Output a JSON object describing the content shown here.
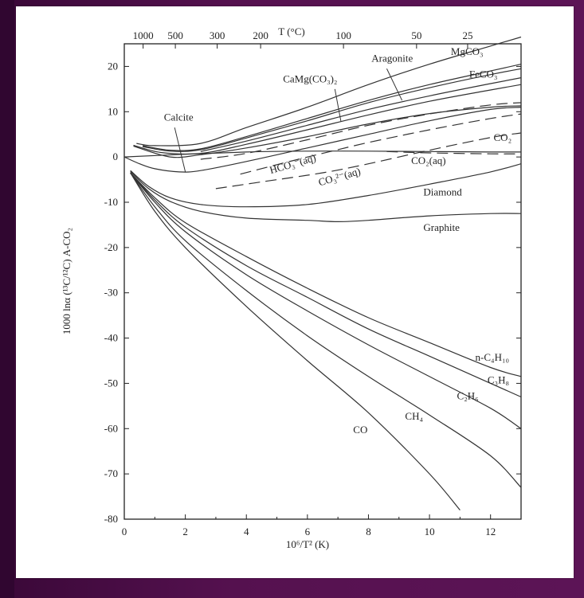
{
  "chart_data": {
    "type": "line",
    "xlabel": "10⁶/T² (K)",
    "ylabel": "1000 lnα (¹³C/¹²C) A-CO₂",
    "top_axis_label": "T (°C)",
    "xlim": [
      0,
      13
    ],
    "ylim": [
      -80,
      25
    ],
    "x_ticks": [
      0,
      2,
      4,
      6,
      8,
      10,
      12
    ],
    "y_ticks": [
      20,
      10,
      0,
      -10,
      -20,
      -30,
      -40,
      -50,
      -60,
      -70,
      -80
    ],
    "top_ticks": [
      {
        "label": "1000",
        "celsius": 1000
      },
      {
        "label": "500",
        "celsius": 500
      },
      {
        "label": "300",
        "celsius": 300
      },
      {
        "label": "200",
        "celsius": 200
      },
      {
        "label": "100",
        "celsius": 100
      },
      {
        "label": "50",
        "celsius": 50
      },
      {
        "label": "25",
        "celsius": 25
      }
    ],
    "series": [
      {
        "name": "MgCO₃",
        "dash": "solid",
        "points": [
          [
            0.4,
            3
          ],
          [
            1,
            2.5
          ],
          [
            2.5,
            3
          ],
          [
            4,
            6.5
          ],
          [
            6,
            11
          ],
          [
            8,
            16
          ],
          [
            10,
            20.5
          ],
          [
            12,
            24.5
          ],
          [
            13,
            26.5
          ]
        ]
      },
      {
        "name": "Aragonite",
        "dash": "solid",
        "points": [
          [
            0.6,
            2.5
          ],
          [
            1.5,
            1.5
          ],
          [
            2.5,
            1.8
          ],
          [
            4,
            4.5
          ],
          [
            6,
            8.5
          ],
          [
            8,
            12.5
          ],
          [
            10,
            16
          ],
          [
            12,
            19
          ],
          [
            13,
            20.5
          ]
        ]
      },
      {
        "name": "FeCO₃",
        "dash": "solid",
        "points": [
          [
            0.6,
            2.3
          ],
          [
            1.5,
            1.3
          ],
          [
            2.5,
            1.6
          ],
          [
            4,
            4.2
          ],
          [
            6,
            8
          ],
          [
            8,
            12
          ],
          [
            10,
            15.3
          ],
          [
            12,
            18.2
          ],
          [
            13,
            19.5
          ]
        ]
      },
      {
        "name": "CaMg(CO₃)₂",
        "dash": "solid",
        "points": [
          [
            2.5,
            1.2
          ],
          [
            4,
            3.5
          ],
          [
            6,
            7
          ],
          [
            8,
            10.5
          ],
          [
            10,
            13.5
          ],
          [
            12,
            16.2
          ],
          [
            13,
            17.5
          ]
        ]
      },
      {
        "name": "",
        "dash": "solid",
        "points": [
          [
            0.3,
            2.6
          ],
          [
            1.2,
            1
          ],
          [
            2.5,
            0.8
          ],
          [
            4,
            2.8
          ],
          [
            6,
            6
          ],
          [
            8,
            9.3
          ],
          [
            10,
            12.3
          ],
          [
            12,
            14.8
          ],
          [
            13,
            16
          ]
        ]
      },
      {
        "name": "",
        "dash": "solid",
        "points": [
          [
            0.3,
            2.4
          ],
          [
            1.5,
            0
          ],
          [
            2.5,
            0.5
          ],
          [
            4,
            2
          ],
          [
            6,
            4.5
          ],
          [
            8,
            7.3
          ],
          [
            10,
            9.6
          ],
          [
            12,
            11
          ],
          [
            13,
            11.3
          ]
        ]
      },
      {
        "name": "",
        "dash": "long",
        "points": [
          [
            2.5,
            -0.5
          ],
          [
            4,
            0.8
          ],
          [
            6,
            3.8
          ],
          [
            8,
            7
          ],
          [
            10,
            9.5
          ],
          [
            12,
            11.5
          ],
          [
            13,
            12
          ]
        ]
      },
      {
        "name": "Calcite",
        "dash": "solid",
        "points": [
          [
            0,
            0
          ],
          [
            0.5,
            -1.5
          ],
          [
            1,
            -2.6
          ],
          [
            1.8,
            -3.3
          ],
          [
            2.5,
            -3
          ],
          [
            4,
            -1
          ],
          [
            6,
            2
          ],
          [
            8,
            5
          ],
          [
            10,
            8
          ],
          [
            12,
            10.5
          ],
          [
            13,
            11
          ]
        ]
      },
      {
        "name": "CO₂",
        "dash": "solid",
        "points": [
          [
            0,
            0
          ],
          [
            2,
            0.6
          ],
          [
            4,
            1.1
          ],
          [
            6,
            1.3
          ],
          [
            8,
            1.3
          ],
          [
            10,
            1.2
          ],
          [
            12,
            1.1
          ],
          [
            13,
            1.1
          ]
        ]
      },
      {
        "name": "HCO₃⁻(aq)",
        "dash": "long",
        "points": [
          [
            3.8,
            -3.8
          ],
          [
            5,
            -1.7
          ],
          [
            6.5,
            0.8
          ],
          [
            8,
            3.2
          ],
          [
            10,
            6
          ],
          [
            12,
            8.5
          ],
          [
            13,
            9.5
          ]
        ]
      },
      {
        "name": "CO₃²⁻(aq)",
        "dash": "long",
        "points": [
          [
            3,
            -7
          ],
          [
            4.5,
            -5.5
          ],
          [
            6.5,
            -3.5
          ],
          [
            8,
            -1.5
          ],
          [
            10,
            1.5
          ],
          [
            12,
            4.3
          ],
          [
            13,
            5.3
          ]
        ]
      },
      {
        "name": "CO₂(aq)",
        "dash": "long",
        "points": [
          [
            8.6,
            1.2
          ],
          [
            10,
            0.9
          ],
          [
            12,
            0.7
          ],
          [
            13,
            0.7
          ]
        ]
      },
      {
        "name": "Diamond",
        "dash": "solid",
        "points": [
          [
            0.2,
            -3
          ],
          [
            0.8,
            -6.5
          ],
          [
            1.5,
            -9
          ],
          [
            2.5,
            -10.5
          ],
          [
            4,
            -11
          ],
          [
            6,
            -10.5
          ],
          [
            8,
            -8.5
          ],
          [
            10,
            -6
          ],
          [
            12,
            -3.3
          ],
          [
            13,
            -1.5
          ]
        ]
      },
      {
        "name": "Graphite",
        "dash": "solid",
        "points": [
          [
            0.2,
            -3.2
          ],
          [
            0.8,
            -7
          ],
          [
            1.5,
            -9.8
          ],
          [
            2.5,
            -12
          ],
          [
            4,
            -13.5
          ],
          [
            6,
            -14
          ],
          [
            7,
            -14.3
          ],
          [
            8,
            -14
          ],
          [
            10,
            -13
          ],
          [
            12,
            -12.5
          ],
          [
            13,
            -12.5
          ]
        ]
      },
      {
        "name": "n-C₄H₁₀",
        "dash": "solid",
        "points": [
          [
            0.2,
            -3.5
          ],
          [
            1,
            -9
          ],
          [
            2,
            -14.5
          ],
          [
            4,
            -22
          ],
          [
            6,
            -29
          ],
          [
            8,
            -35.5
          ],
          [
            10,
            -41
          ],
          [
            12,
            -46.5
          ],
          [
            13,
            -48.5
          ]
        ]
      },
      {
        "name": "C₃H₈",
        "dash": "solid",
        "points": [
          [
            0.2,
            -3.5
          ],
          [
            1,
            -9.5
          ],
          [
            2,
            -15.5
          ],
          [
            4,
            -24
          ],
          [
            6,
            -31
          ],
          [
            8,
            -38
          ],
          [
            10,
            -44
          ],
          [
            12,
            -50
          ],
          [
            13,
            -53
          ]
        ]
      },
      {
        "name": "C₂H₆",
        "dash": "solid",
        "points": [
          [
            0.2,
            -3.5
          ],
          [
            1,
            -10
          ],
          [
            2,
            -16.5
          ],
          [
            4,
            -26
          ],
          [
            6,
            -34
          ],
          [
            8,
            -41.5
          ],
          [
            10,
            -48.5
          ],
          [
            12,
            -55.5
          ],
          [
            13,
            -60
          ]
        ]
      },
      {
        "name": "CH₄",
        "dash": "solid",
        "points": [
          [
            0.2,
            -3.5
          ],
          [
            1,
            -11
          ],
          [
            2,
            -18.5
          ],
          [
            4,
            -29.5
          ],
          [
            6,
            -39.5
          ],
          [
            8,
            -48.5
          ],
          [
            10,
            -57
          ],
          [
            12,
            -66
          ],
          [
            13,
            -73
          ]
        ]
      },
      {
        "name": "CO",
        "dash": "solid",
        "points": [
          [
            0.2,
            -3.5
          ],
          [
            1,
            -12
          ],
          [
            2,
            -20
          ],
          [
            4,
            -33
          ],
          [
            6,
            -45
          ],
          [
            8,
            -56.5
          ],
          [
            10,
            -70
          ],
          [
            11,
            -78
          ]
        ]
      }
    ],
    "labels": [
      {
        "text": "MgCO₃",
        "x": 10.7,
        "y": 22.5
      },
      {
        "text": "Aragonite",
        "x": 8.1,
        "y": 21
      },
      {
        "text": "FeCO₃",
        "x": 11.3,
        "y": 17.5
      },
      {
        "text": "CaMg(CO₃)₂",
        "x": 5.2,
        "y": 16.5
      },
      {
        "text": "Calcite",
        "x": 1.3,
        "y": 8
      },
      {
        "text": "CO₂",
        "x": 12.1,
        "y": 3.5
      },
      {
        "text": "HCO₃⁻(aq)",
        "x": 4.8,
        "y": -3.7
      },
      {
        "text": "CO₃²⁻(aq)",
        "x": 6.4,
        "y": -6.4
      },
      {
        "text": "CO₂(aq)",
        "x": 9.4,
        "y": -1.6
      },
      {
        "text": "Diamond",
        "x": 9.8,
        "y": -8.5
      },
      {
        "text": "Graphite",
        "x": 9.8,
        "y": -16.3
      },
      {
        "text": "n-C₄H₁₀",
        "x": 11.5,
        "y": -45
      },
      {
        "text": "C₃H₈",
        "x": 11.9,
        "y": -50
      },
      {
        "text": "C₂H₆",
        "x": 10.9,
        "y": -53.5
      },
      {
        "text": "CH₄",
        "x": 9.2,
        "y": -58
      },
      {
        "text": "CO",
        "x": 7.5,
        "y": -61
      },
      {
        "text": "",
        "x": 0,
        "y": 0
      }
    ],
    "grid": false
  }
}
